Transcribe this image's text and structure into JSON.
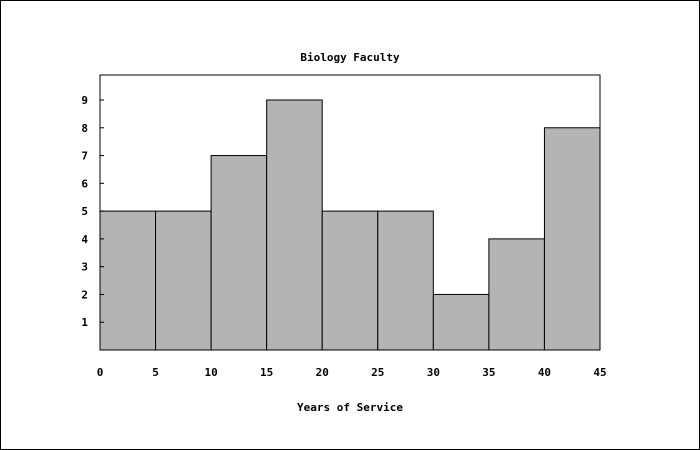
{
  "chart_data": {
    "type": "bar",
    "title": "Biology Faculty",
    "xlabel": "Years of Service",
    "ylabel": "",
    "bins": [
      {
        "x0": 0,
        "x1": 5,
        "value": 5
      },
      {
        "x0": 5,
        "x1": 10,
        "value": 5
      },
      {
        "x0": 10,
        "x1": 15,
        "value": 7
      },
      {
        "x0": 15,
        "x1": 20,
        "value": 9
      },
      {
        "x0": 20,
        "x1": 25,
        "value": 5
      },
      {
        "x0": 25,
        "x1": 30,
        "value": 5
      },
      {
        "x0": 30,
        "x1": 35,
        "value": 2
      },
      {
        "x0": 35,
        "x1": 40,
        "value": 4
      },
      {
        "x0": 40,
        "x1": 45,
        "value": 8
      }
    ],
    "xlim": [
      0,
      45
    ],
    "ylim": [
      0,
      9.9
    ],
    "x_ticks": [
      "0",
      "5",
      "10",
      "15",
      "20",
      "25",
      "30",
      "35",
      "40",
      "45"
    ],
    "y_ticks": [
      "1",
      "2",
      "3",
      "4",
      "5",
      "6",
      "7",
      "8",
      "9"
    ],
    "grid": false,
    "bar_color": "#b4b4b4",
    "edge_color": "#000000"
  }
}
